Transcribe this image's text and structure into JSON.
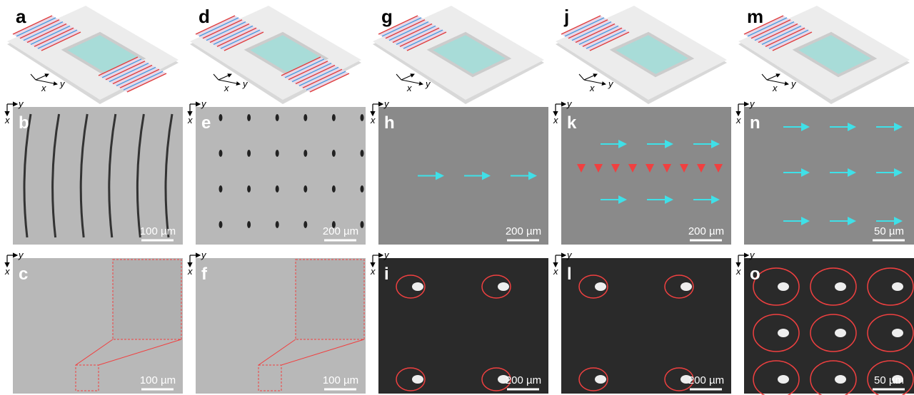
{
  "axes": {
    "x": "x",
    "y": "y"
  },
  "columns": [
    {
      "schematic": "a",
      "middle": {
        "letter": "b",
        "scale_bar": "100 µm"
      },
      "bottom": {
        "letter": "c",
        "scale_bar": "100 µm"
      }
    },
    {
      "schematic": "d",
      "middle": {
        "letter": "e",
        "scale_bar": "200 µm"
      },
      "bottom": {
        "letter": "f",
        "scale_bar": "100 µm"
      }
    },
    {
      "schematic": "g",
      "middle": {
        "letter": "h",
        "scale_bar": "200 µm"
      },
      "bottom": {
        "letter": "i",
        "scale_bar": "200 µm"
      }
    },
    {
      "schematic": "j",
      "middle": {
        "letter": "k",
        "scale_bar": "200 µm"
      },
      "bottom": {
        "letter": "l",
        "scale_bar": "200 µm"
      }
    },
    {
      "schematic": "m",
      "middle": {
        "letter": "n",
        "scale_bar": "50 µm"
      },
      "bottom": {
        "letter": "o",
        "scale_bar": "50 µm"
      }
    }
  ]
}
